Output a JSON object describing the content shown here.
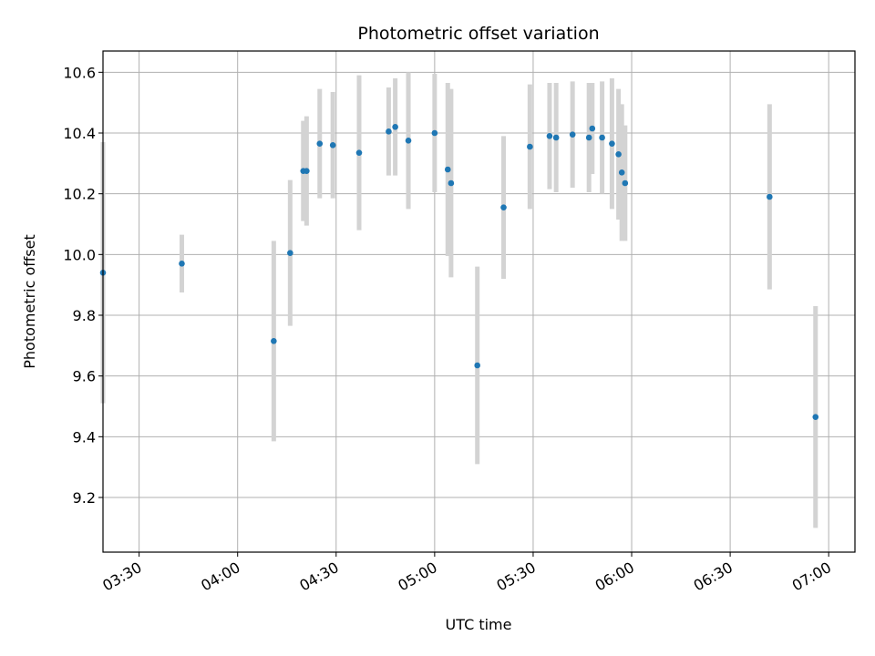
{
  "chart_data": {
    "type": "scatter",
    "title": "Photometric offset variation",
    "xlabel": "UTC time",
    "ylabel": "Photometric offset",
    "xlim": [
      "03:19",
      "07:08"
    ],
    "ylim": [
      9.02,
      10.67
    ],
    "grid": true,
    "x_ticks": [
      "03:30",
      "04:00",
      "04:30",
      "05:00",
      "05:30",
      "06:00",
      "06:30",
      "07:00"
    ],
    "y_ticks": [
      "9.2",
      "9.4",
      "9.6",
      "9.8",
      "10.0",
      "10.2",
      "10.4",
      "10.6"
    ],
    "series": [
      {
        "marker_color": "#1f77b4",
        "errorbar_color": "#d3d3d3",
        "points": [
          {
            "x": "03:19",
            "y": 9.94,
            "err": 0.43
          },
          {
            "x": "03:43",
            "y": 9.97,
            "err": 0.095
          },
          {
            "x": "04:11",
            "y": 9.715,
            "err": 0.33
          },
          {
            "x": "04:16",
            "y": 10.005,
            "err": 0.24
          },
          {
            "x": "04:20",
            "y": 10.275,
            "err": 0.165
          },
          {
            "x": "04:21",
            "y": 10.275,
            "err": 0.18
          },
          {
            "x": "04:25",
            "y": 10.365,
            "err": 0.18
          },
          {
            "x": "04:29",
            "y": 10.36,
            "err": 0.175
          },
          {
            "x": "04:37",
            "y": 10.335,
            "err": 0.255
          },
          {
            "x": "04:46",
            "y": 10.405,
            "err": 0.145
          },
          {
            "x": "04:48",
            "y": 10.42,
            "err": 0.16
          },
          {
            "x": "04:52",
            "y": 10.375,
            "err": 0.225
          },
          {
            "x": "05:00",
            "y": 10.4,
            "err": 0.195
          },
          {
            "x": "05:04",
            "y": 10.28,
            "err": 0.285
          },
          {
            "x": "05:05",
            "y": 10.235,
            "err": 0.31
          },
          {
            "x": "05:13",
            "y": 9.635,
            "err": 0.325
          },
          {
            "x": "05:21",
            "y": 10.155,
            "err": 0.235
          },
          {
            "x": "05:29",
            "y": 10.355,
            "err": 0.205
          },
          {
            "x": "05:35",
            "y": 10.39,
            "err": 0.175
          },
          {
            "x": "05:37",
            "y": 10.385,
            "err": 0.18
          },
          {
            "x": "05:42",
            "y": 10.395,
            "err": 0.175
          },
          {
            "x": "05:47",
            "y": 10.385,
            "err": 0.18
          },
          {
            "x": "05:48",
            "y": 10.415,
            "err": 0.15
          },
          {
            "x": "05:51",
            "y": 10.385,
            "err": 0.185
          },
          {
            "x": "05:54",
            "y": 10.365,
            "err": 0.215
          },
          {
            "x": "05:56",
            "y": 10.33,
            "err": 0.215
          },
          {
            "x": "05:57",
            "y": 10.27,
            "err": 0.225
          },
          {
            "x": "05:58",
            "y": 10.235,
            "err": 0.19
          },
          {
            "x": "06:42",
            "y": 10.19,
            "err": 0.305
          },
          {
            "x": "06:56",
            "y": 9.465,
            "err": 0.365
          }
        ]
      }
    ]
  }
}
